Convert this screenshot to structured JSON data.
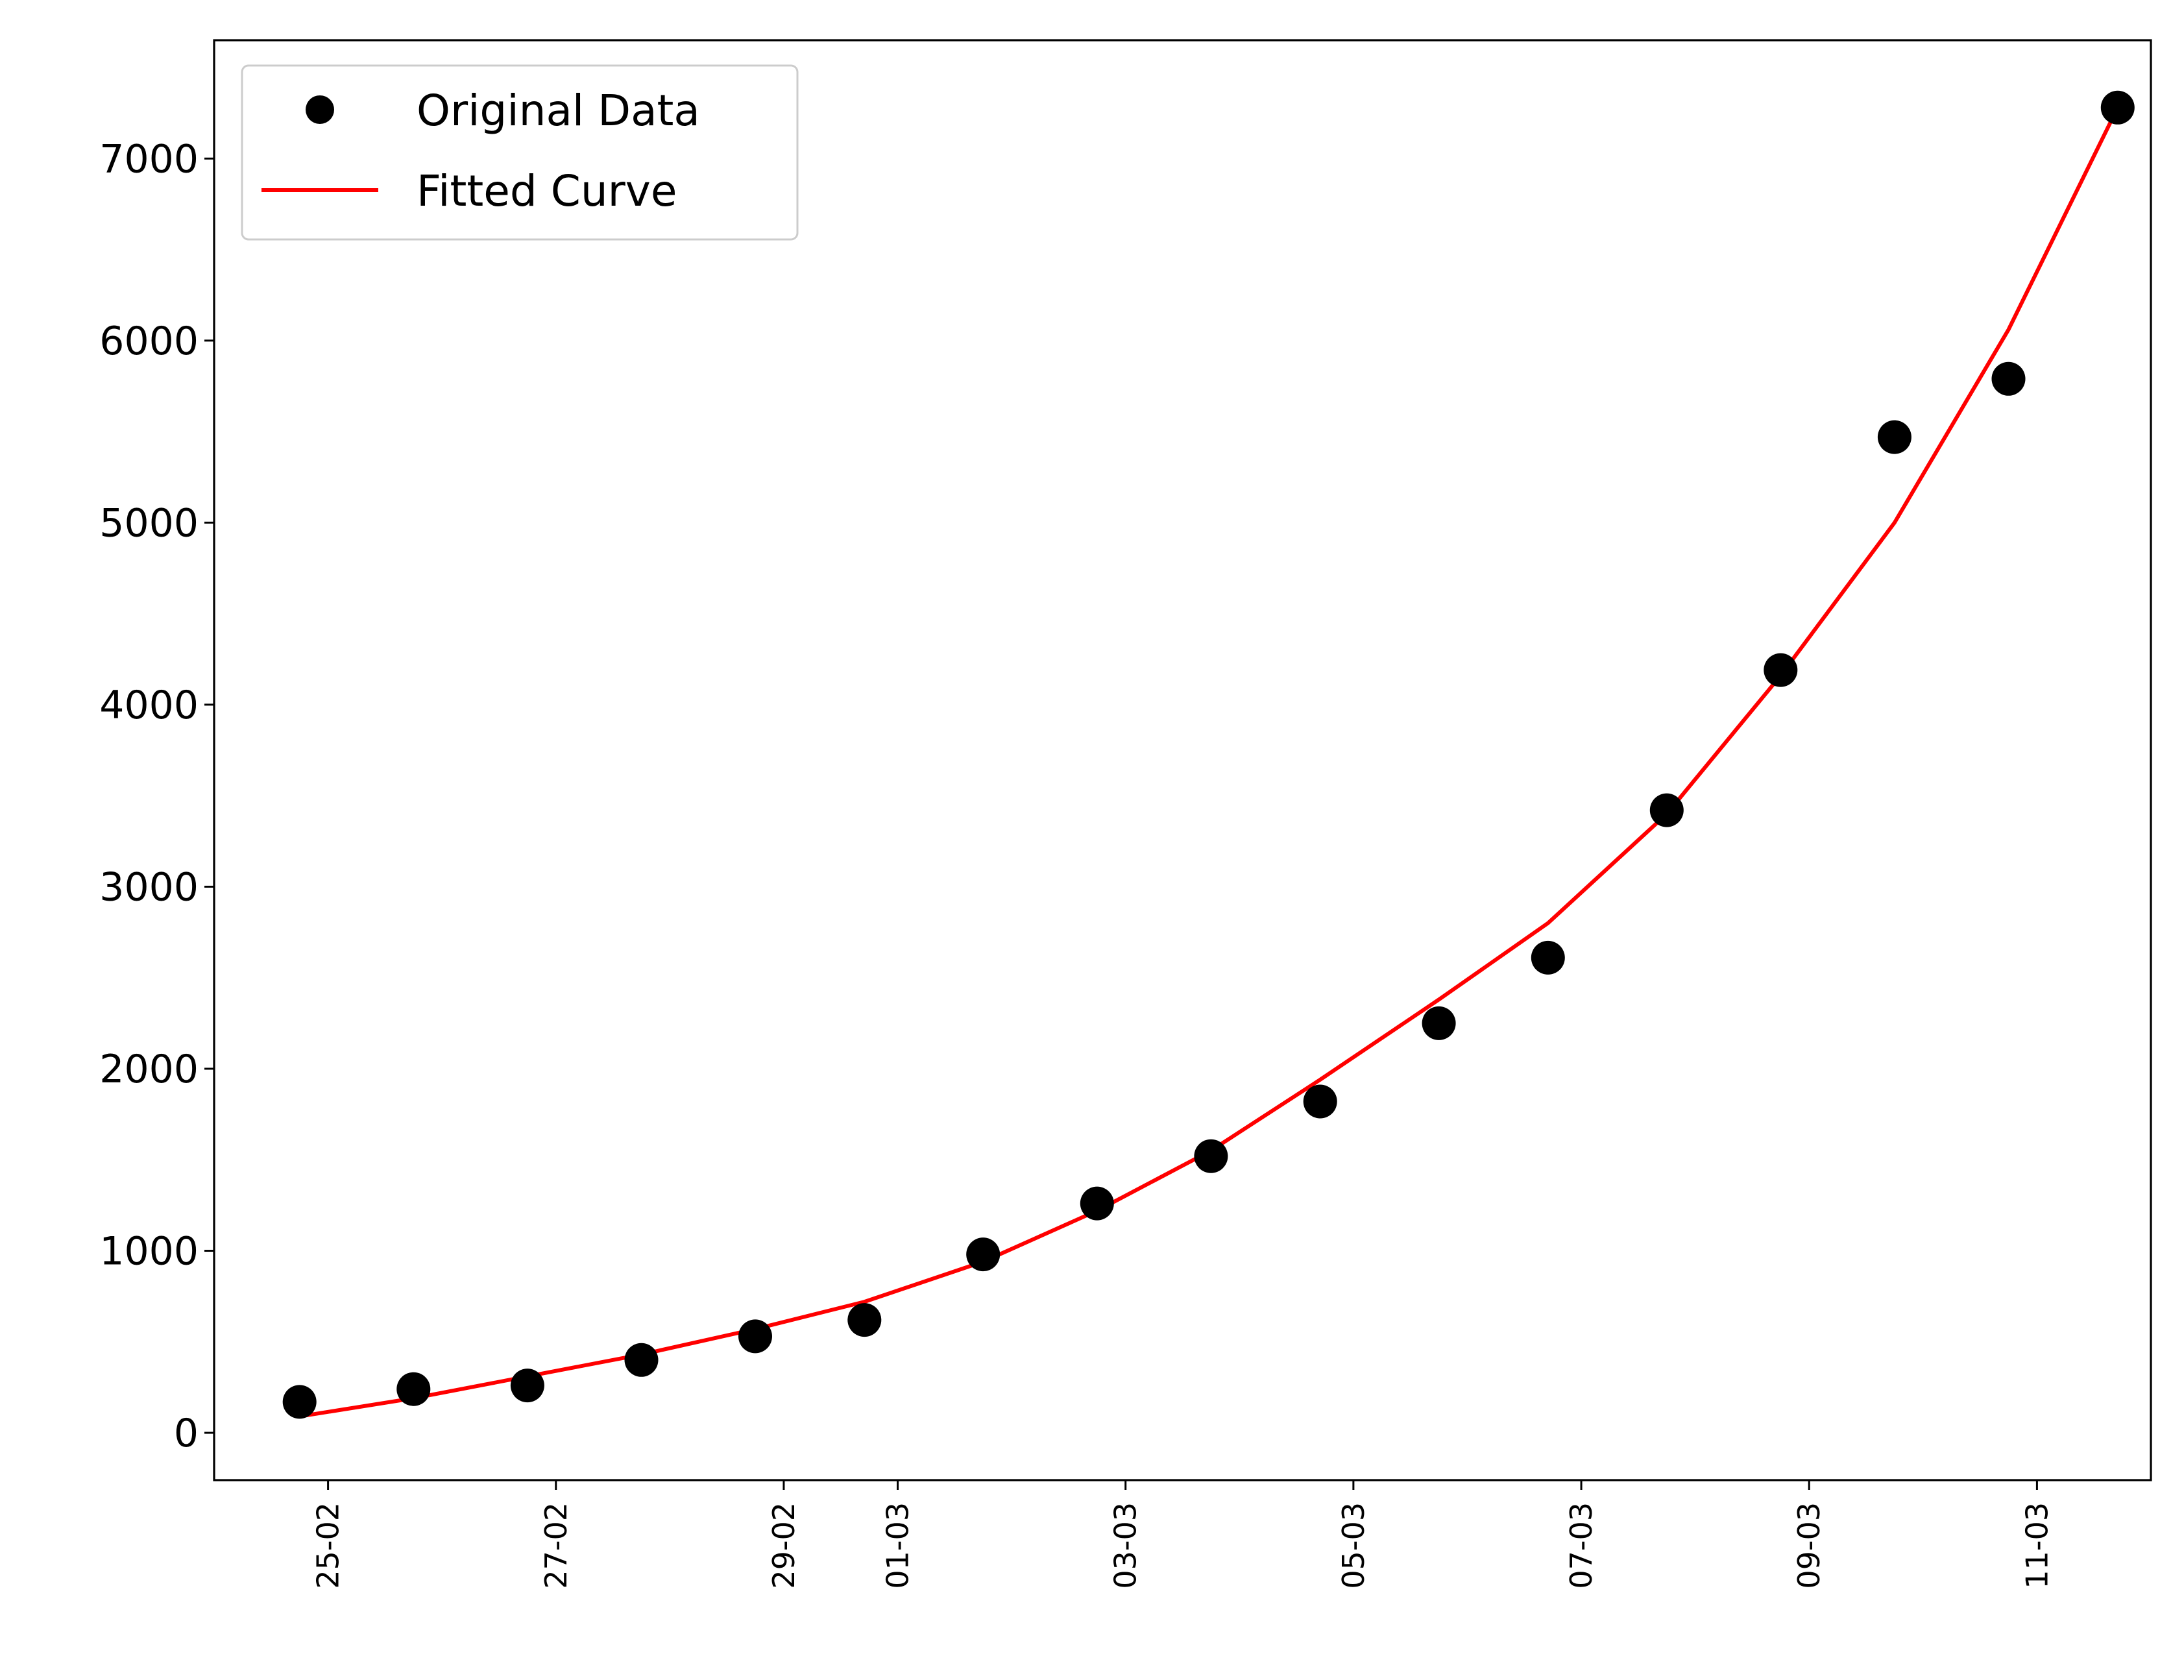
{
  "chart_data": {
    "type": "scatter",
    "title": "",
    "xlabel": "",
    "ylabel": "",
    "grid": false,
    "legend": {
      "placement": "top-left",
      "entries": [
        {
          "label": "Original Data",
          "marker": "circle",
          "color": "#000000"
        },
        {
          "label": "Fitted Curve",
          "marker": "line",
          "color": "#ff0000"
        }
      ]
    },
    "x_ticks": [
      "25-02",
      "27-02",
      "29-02",
      "01-03",
      "03-03",
      "05-03",
      "07-03",
      "09-03",
      "11-03"
    ],
    "y_ticks": [
      "0",
      "1000",
      "2000",
      "3000",
      "4000",
      "5000",
      "6000",
      "7000"
    ],
    "ylim": [
      -260,
      7650
    ],
    "xlim": [
      "2020-02-24",
      "2020-03-12"
    ],
    "series": [
      {
        "name": "Original Data",
        "style": "points",
        "color": "#000000",
        "x": [
          "2020-02-24 18:00",
          "2020-02-25 18:00",
          "2020-02-26 18:00",
          "2020-02-27 18:00",
          "2020-02-28 18:00",
          "2020-02-29 17:00",
          "2020-03-01 18:00",
          "2020-03-02 18:00",
          "2020-03-03 18:00",
          "2020-03-04 17:00",
          "2020-03-05 18:00",
          "2020-03-06 17:00",
          "2020-03-07 18:00",
          "2020-03-08 18:00",
          "2020-03-09 18:00",
          "2020-03-10 18:00",
          "2020-03-11 17:00"
        ],
        "y": [
          170,
          240,
          260,
          400,
          530,
          620,
          980,
          1260,
          1520,
          1820,
          2250,
          2610,
          3420,
          4190,
          5470,
          5790,
          7280
        ]
      },
      {
        "name": "Fitted Curve",
        "style": "line",
        "color": "#ff0000",
        "x": [
          "2020-02-24 18:00",
          "2020-02-25 18:00",
          "2020-02-26 18:00",
          "2020-02-27 18:00",
          "2020-02-28 18:00",
          "2020-02-29 17:00",
          "2020-03-01 18:00",
          "2020-03-02 18:00",
          "2020-03-03 18:00",
          "2020-03-04 17:00",
          "2020-03-05 18:00",
          "2020-03-06 17:00",
          "2020-03-07 18:00",
          "2020-03-08 18:00",
          "2020-03-09 18:00",
          "2020-03-10 18:00",
          "2020-03-11 17:00"
        ],
        "y": [
          90,
          190,
          310,
          430,
          570,
          720,
          940,
          1220,
          1550,
          1940,
          2380,
          2800,
          3400,
          4160,
          5000,
          6060,
          7280
        ]
      }
    ]
  }
}
